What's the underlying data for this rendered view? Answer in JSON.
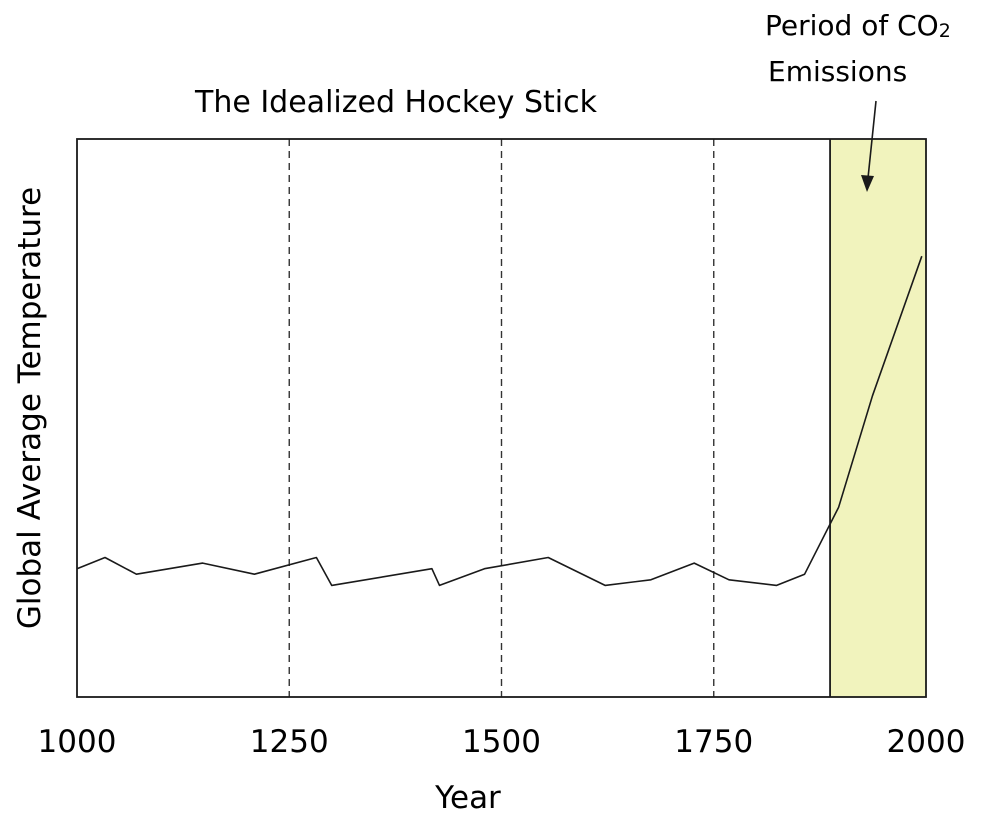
{
  "chart_data": {
    "type": "line",
    "title": "The Idealized Hockey Stick",
    "xlabel": "Year",
    "ylabel": "Global Average Temperature",
    "xlim": [
      1000,
      2000
    ],
    "ylim": [
      0,
      1
    ],
    "x_ticks": [
      1000,
      1250,
      1500,
      1750,
      2000
    ],
    "x_tick_labels": [
      "1000",
      "1250",
      "1500",
      "1750",
      "2000"
    ],
    "dashed_gridlines_x": [
      1250,
      1500,
      1750
    ],
    "highlight": {
      "x_start": 1887,
      "x_end": 2000,
      "color": "#f1f3bd",
      "label_line1": "Period of CO",
      "label_subscript": "2",
      "label_line2": "Emissions"
    },
    "series": [
      {
        "values_x": [
          1000,
          1033,
          1070,
          1148,
          1209,
          1282,
          1300,
          1418,
          1427,
          1480,
          1555,
          1622,
          1676,
          1727,
          1768,
          1824,
          1857,
          1897,
          1937,
          1995
        ],
        "values_y": [
          0.23,
          0.25,
          0.22,
          0.24,
          0.22,
          0.25,
          0.2,
          0.23,
          0.2,
          0.23,
          0.25,
          0.2,
          0.21,
          0.24,
          0.21,
          0.2,
          0.22,
          0.34,
          0.54,
          0.79
        ]
      }
    ],
    "grid": false,
    "legend": "none",
    "line_color": "#1a1a1a"
  }
}
